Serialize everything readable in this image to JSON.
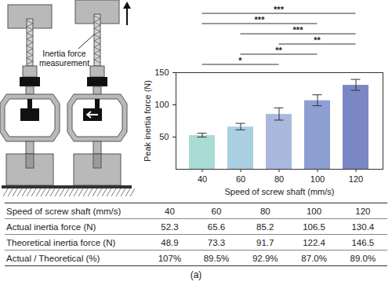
{
  "diagram": {
    "label": "Inertia force measurement"
  },
  "chart_data": {
    "type": "bar",
    "categories": [
      "40",
      "60",
      "80",
      "100",
      "120"
    ],
    "values": [
      52.3,
      65.6,
      85.2,
      106.5,
      130.4
    ],
    "errors": [
      3,
      5,
      9.5,
      8.5,
      8.5
    ],
    "colors": [
      "#a8dcd4",
      "#a9cfe0",
      "#a9b9dd",
      "#8d9fd2",
      "#7b87c4"
    ],
    "xlabel": "Speed of screw shaft (mm/s)",
    "ylabel": "Peak inertia force (N)",
    "ylim": [
      0,
      150
    ],
    "yticks": [
      50,
      100,
      150
    ],
    "significance": [
      {
        "from": "40",
        "to": "80",
        "label": "*"
      },
      {
        "from": "60",
        "to": "100",
        "label": "**"
      },
      {
        "from": "80",
        "to": "120",
        "label": "**"
      },
      {
        "from": "60",
        "to": "120",
        "label": "***"
      },
      {
        "from": "40",
        "to": "100",
        "label": "***"
      },
      {
        "from": "40",
        "to": "120",
        "label": "***"
      }
    ]
  },
  "table": {
    "rows": [
      [
        "Speed of screw shaft (mm/s)",
        "40",
        "60",
        "80",
        "100",
        "120"
      ],
      [
        "Actual inertia force (N)",
        "52.3",
        "65.6",
        "85.2",
        "106.5",
        "130.4"
      ],
      [
        "Theoretical inertia force (N)",
        "48.9",
        "73.3",
        "91.7",
        "122.4",
        "146.5"
      ],
      [
        "Actual / Theoretical (%)",
        "107%",
        "89.5%",
        "92.9%",
        "87.0%",
        "89.0%"
      ]
    ]
  },
  "caption": "(a)"
}
